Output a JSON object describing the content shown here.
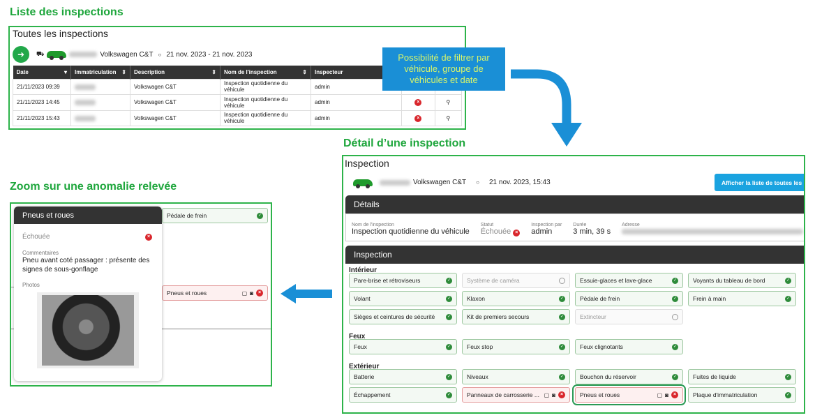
{
  "sections": {
    "list": "Liste des inspections",
    "detail": "Détail d’une inspection",
    "zoom": "Zoom sur une anomalie relevée"
  },
  "callout": "Possibilité de filtrer par véhicule, groupe de véhicules et date",
  "colors": {
    "accent_green": "#1ea63c",
    "callout_blue": "#1a8fd6",
    "fail_red": "#d9262c",
    "ok_green": "#2e8b3a"
  },
  "list": {
    "title": "Toutes les inspections",
    "vehicle": "Volkswagen C&T",
    "date_range": "21 nov. 2023  -  21 nov. 2023",
    "columns": [
      "Date",
      "Immatriculation",
      "Description",
      "Nom de l'inspection",
      "Inspecteur"
    ],
    "rows": [
      {
        "date": "21/11/2023 09:39",
        "desc": "Volkswagen C&T",
        "name": "Inspection quotidienne du véhicule",
        "inspector": "admin"
      },
      {
        "date": "21/11/2023 14:45",
        "desc": "Volkswagen C&T",
        "name": "Inspection quotidienne du véhicule",
        "inspector": "admin"
      },
      {
        "date": "21/11/2023 15:43",
        "desc": "Volkswagen C&T",
        "name": "Inspection quotidienne du véhicule",
        "inspector": "admin"
      }
    ]
  },
  "detail": {
    "title": "Inspection",
    "vehicle": "Volkswagen C&T",
    "datetime": "21 nov. 2023, 15:43",
    "button": "Afficher la liste de toutes les",
    "details_header": "Détails",
    "fields": {
      "name_label": "Nom de l'inspection",
      "name": "Inspection quotidienne du véhicule",
      "status_label": "Statut",
      "status": "Échouée",
      "by_label": "Inspection par",
      "by": "admin",
      "duration_label": "Durée",
      "duration": "3 min, 39 s",
      "address_label": "Adresse"
    },
    "inspection_header": "Inspection",
    "groups": [
      {
        "name": "Intérieur",
        "items": [
          [
            "Pare-brise et rétroviseurs",
            "ok"
          ],
          [
            "Système de caméra",
            "na"
          ],
          [
            "Essuie-glaces et lave-glace",
            "ok"
          ],
          [
            "Voyants du tableau de bord",
            "ok"
          ],
          [
            "Volant",
            "ok"
          ],
          [
            "Klaxon",
            "ok"
          ],
          [
            "Pédale de frein",
            "ok"
          ],
          [
            "Frein à main",
            "ok"
          ],
          [
            "Sièges et ceintures de sécurité",
            "ok"
          ],
          [
            "Kit de premiers secours",
            "ok"
          ],
          [
            "Extincteur",
            "na"
          ]
        ]
      },
      {
        "name": "Feux",
        "items": [
          [
            "Feux",
            "ok"
          ],
          [
            "Feux stop",
            "ok"
          ],
          [
            "Feux clignotants",
            "ok"
          ]
        ]
      },
      {
        "name": "Extérieur",
        "items": [
          [
            "Batterie",
            "ok"
          ],
          [
            "Niveaux",
            "ok"
          ],
          [
            "Bouchon du réservoir",
            "ok"
          ],
          [
            "Fuites de liquide",
            "ok"
          ],
          [
            "Échappement",
            "ok"
          ],
          [
            "Panneaux de carrosserie ...",
            "fail"
          ],
          [
            "Pneus et roues",
            "fail"
          ],
          [
            "Plaque d'immatriculation",
            "ok"
          ]
        ]
      }
    ]
  },
  "zoom": {
    "popup_title": "Pneus et roues",
    "status": "Échouée",
    "comments_label": "Commentaires",
    "comment": "Pneu avant coté passager : présente des signes de sous-gonflage",
    "photos_label": "Photos",
    "item_top": "Pédale de frein",
    "item_fail": "Pneus et roues"
  }
}
